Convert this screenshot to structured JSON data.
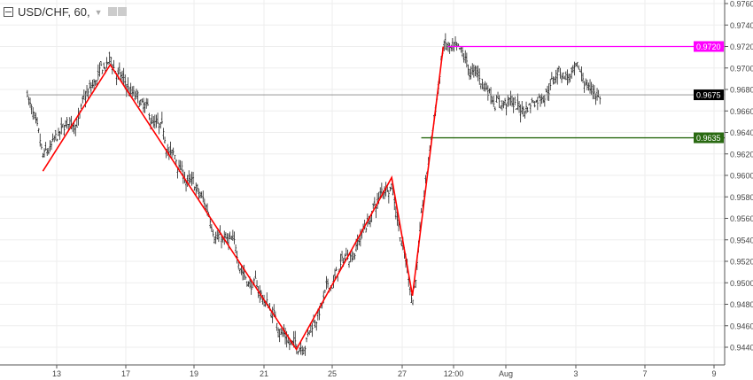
{
  "header": {
    "symbol": "USD/CHF, 60,",
    "icons": [
      "collapse-icon",
      "dropdown-caret-icon",
      "eye-icon",
      "gear-icon"
    ]
  },
  "chart_data": {
    "type": "ohlc",
    "title": "USD/CHF, 60,",
    "ylim": [
      0.943,
      0.9765
    ],
    "y_ticks": [
      "0.9760",
      "0.9740",
      "0.9720",
      "0.9700",
      "0.9680",
      "0.9660",
      "0.9640",
      "0.9620",
      "0.9600",
      "0.9580",
      "0.9560",
      "0.9540",
      "0.9520",
      "0.9500",
      "0.9480",
      "0.9460",
      "0.9440"
    ],
    "x_ticks": [
      {
        "label": "13",
        "day": 13
      },
      {
        "label": "17",
        "day": 17
      },
      {
        "label": "19",
        "day": 19
      },
      {
        "label": "21",
        "day": 21
      },
      {
        "label": "25",
        "day": 25
      },
      {
        "label": "27",
        "day": 27
      },
      {
        "label": "12:00",
        "day": 30.5
      },
      {
        "label": "Aug",
        "day": 32
      },
      {
        "label": "3",
        "day": 34
      },
      {
        "label": "7",
        "day": 38
      },
      {
        "label": "9",
        "day": 40
      }
    ],
    "grid": true,
    "price_path": [
      [
        11.3,
        0.968
      ],
      [
        12.2,
        0.9604
      ],
      [
        16.1,
        0.9703
      ],
      [
        22.9,
        0.9438
      ],
      [
        26.7,
        0.9598
      ],
      [
        27.7,
        0.9488
      ],
      [
        29.8,
        0.972
      ],
      [
        31,
        0.969
      ],
      [
        32.5,
        0.966
      ],
      [
        33.5,
        0.97
      ],
      [
        35.4,
        0.9675
      ]
    ],
    "zigzag": {
      "color": "#ff0000",
      "points": [
        [
          12.2,
          0.9604
        ],
        [
          16.1,
          0.9703
        ],
        [
          22.9,
          0.9438
        ],
        [
          26.7,
          0.9598
        ],
        [
          27.7,
          0.9488
        ],
        [
          29.8,
          0.972
        ]
      ]
    },
    "levels": [
      {
        "price": 0.972,
        "label": "0.9720",
        "color": "#ff00ff",
        "from_day": 30.1
      },
      {
        "price": 0.9635,
        "label": "0.9635",
        "color": "#2a6a12",
        "from_day": 28.3
      },
      {
        "price": 0.9675,
        "label": "0.9675",
        "color": "#000000",
        "line_color": "#888888",
        "from_day": 11.3
      }
    ]
  }
}
